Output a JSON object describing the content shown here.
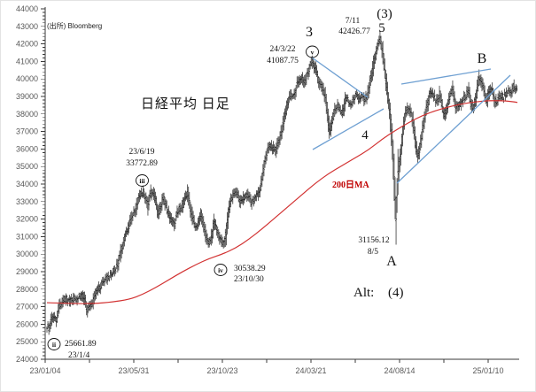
{
  "header": {
    "source_label": "(出所) Bloomberg",
    "title": "日経平均 日足"
  },
  "annotations": {
    "jan2023_low": {
      "circle": "ii",
      "value": "25661.89",
      "date": "23/1/4"
    },
    "jun2023_high": {
      "circle": "iii",
      "date": "23/6/19",
      "value": "33772.89"
    },
    "oct2023_low": {
      "circle": "iv",
      "value": "30538.29",
      "date": "23/10/30"
    },
    "mar2024_high": {
      "circle": "v",
      "date": "24/3/22",
      "value": "41087.75"
    },
    "jul2024_high": {
      "date": "7/11",
      "value": "42426.77"
    },
    "aug2024_low": {
      "value": "31156.12",
      "date": "8/5"
    },
    "wave_3": "3",
    "wave_3_paren": "(3)",
    "wave_5": "5",
    "wave_4": "4",
    "wave_a": "A",
    "wave_b": "B",
    "alt_label": "Alt:",
    "alt_value": "(4)",
    "ma_label": "200日MA"
  },
  "chart_data": {
    "type": "candlestick",
    "title": "日経平均 日足 (Nikkei 225 daily)",
    "source": "Bloomberg",
    "legend_position": "none",
    "grid": false,
    "y_axis": {
      "min": 24000,
      "max": 44000,
      "step": 1000,
      "minor_step": 200
    },
    "x_ticks": [
      "23/01/04",
      "23/05/31",
      "23/10/23",
      "24/03/21",
      "24/08/14",
      "25/01/10"
    ],
    "key_points": [
      {
        "wave": "ii",
        "date": "23/1/4",
        "price": 25661.89
      },
      {
        "wave": "iii",
        "date": "23/6/19",
        "price": 33772.89
      },
      {
        "wave": "iv",
        "date": "23/10/30",
        "price": 30538.29
      },
      {
        "wave": "v",
        "date": "24/3/22",
        "price": 41087.75
      },
      {
        "wave": "(3)/5",
        "date": "24/7/11",
        "price": 42426.77
      },
      {
        "wave": "A",
        "date": "24/8/5",
        "price": 31156.12
      }
    ],
    "price_path": [
      [
        52,
        25850
      ],
      [
        54,
        25750
      ],
      [
        57,
        26250
      ],
      [
        60,
        26450
      ],
      [
        63,
        26300
      ],
      [
        66,
        27000
      ],
      [
        70,
        27350
      ],
      [
        74,
        27450
      ],
      [
        78,
        27300
      ],
      [
        82,
        27500
      ],
      [
        86,
        27450
      ],
      [
        90,
        27650
      ],
      [
        94,
        27500
      ],
      [
        98,
        26750
      ],
      [
        101,
        27050
      ],
      [
        105,
        27400
      ],
      [
        108,
        27900
      ],
      [
        112,
        28100
      ],
      [
        116,
        28450
      ],
      [
        120,
        28600
      ],
      [
        124,
        28750
      ],
      [
        128,
        29050
      ],
      [
        132,
        29350
      ],
      [
        136,
        30250
      ],
      [
        140,
        30950
      ],
      [
        144,
        31450
      ],
      [
        148,
        32250
      ],
      [
        152,
        32450
      ],
      [
        156,
        33250
      ],
      [
        160,
        33550
      ],
      [
        163,
        33300
      ],
      [
        166,
        32750
      ],
      [
        169,
        33450
      ],
      [
        172,
        33500
      ],
      [
        175,
        32900
      ],
      [
        178,
        32350
      ],
      [
        181,
        32850
      ],
      [
        184,
        33200
      ],
      [
        187,
        32650
      ],
      [
        190,
        32250
      ],
      [
        193,
        31900
      ],
      [
        196,
        31750
      ],
      [
        199,
        32350
      ],
      [
        202,
        32600
      ],
      [
        205,
        32750
      ],
      [
        208,
        33250
      ],
      [
        211,
        33450
      ],
      [
        214,
        32550
      ],
      [
        217,
        31950
      ],
      [
        220,
        31550
      ],
      [
        223,
        31900
      ],
      [
        226,
        32350
      ],
      [
        229,
        31600
      ],
      [
        232,
        30900
      ],
      [
        235,
        30650
      ],
      [
        238,
        31000
      ],
      [
        241,
        31850
      ],
      [
        244,
        31400
      ],
      [
        247,
        30850
      ],
      [
        250,
        30650
      ],
      [
        253,
        30700
      ],
      [
        256,
        31950
      ],
      [
        259,
        32850
      ],
      [
        262,
        33300
      ],
      [
        265,
        33500
      ],
      [
        268,
        33300
      ],
      [
        271,
        32900
      ],
      [
        274,
        33250
      ],
      [
        277,
        33450
      ],
      [
        280,
        33250
      ],
      [
        283,
        32900
      ],
      [
        286,
        33050
      ],
      [
        289,
        33300
      ],
      [
        292,
        33550
      ],
      [
        295,
        34300
      ],
      [
        298,
        35250
      ],
      [
        301,
        35950
      ],
      [
        304,
        36200
      ],
      [
        307,
        36050
      ],
      [
        310,
        35850
      ],
      [
        313,
        36350
      ],
      [
        316,
        36850
      ],
      [
        319,
        37550
      ],
      [
        322,
        38250
      ],
      [
        325,
        38850
      ],
      [
        328,
        39150
      ],
      [
        331,
        39050
      ],
      [
        334,
        39650
      ],
      [
        337,
        39950
      ],
      [
        340,
        40150
      ],
      [
        343,
        39750
      ],
      [
        346,
        40250
      ],
      [
        349,
        40750
      ],
      [
        352,
        40950
      ],
      [
        355,
        40550
      ],
      [
        358,
        40000
      ],
      [
        361,
        39600
      ],
      [
        364,
        39450
      ],
      [
        367,
        38750
      ],
      [
        370,
        37350
      ],
      [
        372,
        36950
      ],
      [
        374,
        37550
      ],
      [
        377,
        38150
      ],
      [
        380,
        38450
      ],
      [
        383,
        38250
      ],
      [
        386,
        38050
      ],
      [
        389,
        38850
      ],
      [
        392,
        38750
      ],
      [
        395,
        38550
      ],
      [
        398,
        38850
      ],
      [
        401,
        39050
      ],
      [
        404,
        38750
      ],
      [
        407,
        39050
      ],
      [
        410,
        38850
      ],
      [
        413,
        38950
      ],
      [
        416,
        39550
      ],
      [
        419,
        40350
      ],
      [
        422,
        41150
      ],
      [
        425,
        41800
      ],
      [
        428,
        42300
      ],
      [
        431,
        41550
      ],
      [
        434,
        40250
      ],
      [
        437,
        38900
      ],
      [
        440,
        37700
      ],
      [
        442,
        36200
      ],
      [
        444,
        34300
      ],
      [
        446,
        31800
      ],
      [
        448,
        34500
      ],
      [
        450,
        35100
      ],
      [
        453,
        36500
      ],
      [
        456,
        37900
      ],
      [
        459,
        38250
      ],
      [
        462,
        38150
      ],
      [
        465,
        37650
      ],
      [
        468,
        36350
      ],
      [
        471,
        35500
      ],
      [
        474,
        36250
      ],
      [
        477,
        37350
      ],
      [
        480,
        38250
      ],
      [
        483,
        38850
      ],
      [
        486,
        39250
      ],
      [
        489,
        39050
      ],
      [
        492,
        38650
      ],
      [
        495,
        39150
      ],
      [
        498,
        38450
      ],
      [
        501,
        37950
      ],
      [
        504,
        38350
      ],
      [
        507,
        38950
      ],
      [
        510,
        39350
      ],
      [
        513,
        38550
      ],
      [
        516,
        38350
      ],
      [
        519,
        38550
      ],
      [
        522,
        38850
      ],
      [
        525,
        39050
      ],
      [
        528,
        39350
      ],
      [
        531,
        38450
      ],
      [
        534,
        38350
      ],
      [
        537,
        39150
      ],
      [
        540,
        40100
      ],
      [
        543,
        39750
      ],
      [
        546,
        39250
      ],
      [
        549,
        38750
      ],
      [
        552,
        39450
      ],
      [
        555,
        39250
      ],
      [
        558,
        38650
      ],
      [
        561,
        38750
      ],
      [
        564,
        39050
      ],
      [
        567,
        38950
      ],
      [
        570,
        39150
      ],
      [
        573,
        39450
      ],
      [
        576,
        39250
      ],
      [
        579,
        39550
      ],
      [
        583,
        39300
      ]
    ],
    "ma_path": [
      [
        52,
        27230
      ],
      [
        80,
        27180
      ],
      [
        105,
        27180
      ],
      [
        125,
        27260
      ],
      [
        145,
        27420
      ],
      [
        160,
        27700
      ],
      [
        175,
        28100
      ],
      [
        190,
        28550
      ],
      [
        205,
        29000
      ],
      [
        220,
        29400
      ],
      [
        235,
        29750
      ],
      [
        250,
        30000
      ],
      [
        265,
        30350
      ],
      [
        280,
        30850
      ],
      [
        295,
        31450
      ],
      [
        310,
        32100
      ],
      [
        325,
        32750
      ],
      [
        340,
        33400
      ],
      [
        355,
        34050
      ],
      [
        370,
        34600
      ],
      [
        385,
        35050
      ],
      [
        400,
        35500
      ],
      [
        415,
        35950
      ],
      [
        430,
        36550
      ],
      [
        445,
        37050
      ],
      [
        460,
        37500
      ],
      [
        475,
        37900
      ],
      [
        490,
        38180
      ],
      [
        505,
        38400
      ],
      [
        520,
        38570
      ],
      [
        535,
        38690
      ],
      [
        550,
        38760
      ],
      [
        565,
        38760
      ],
      [
        575,
        38720
      ],
      [
        583,
        38660
      ]
    ],
    "trendlines": [
      {
        "x1": 351,
        "y1": 64,
        "x2": 414,
        "y2": 109
      },
      {
        "x1": 352,
        "y1": 168,
        "x2": 432,
        "y2": 122
      },
      {
        "x1": 452,
        "y1": 94,
        "x2": 553,
        "y2": 77
      },
      {
        "x1": 447,
        "y1": 206,
        "x2": 575,
        "y2": 84
      }
    ],
    "colors": {
      "bars": "#1b1b1b",
      "ma": "#d23232",
      "ma_label": "#c00000",
      "trendline": "#6fa0d2",
      "axis": "#3a3a3a",
      "tick_label": "#595959"
    }
  }
}
